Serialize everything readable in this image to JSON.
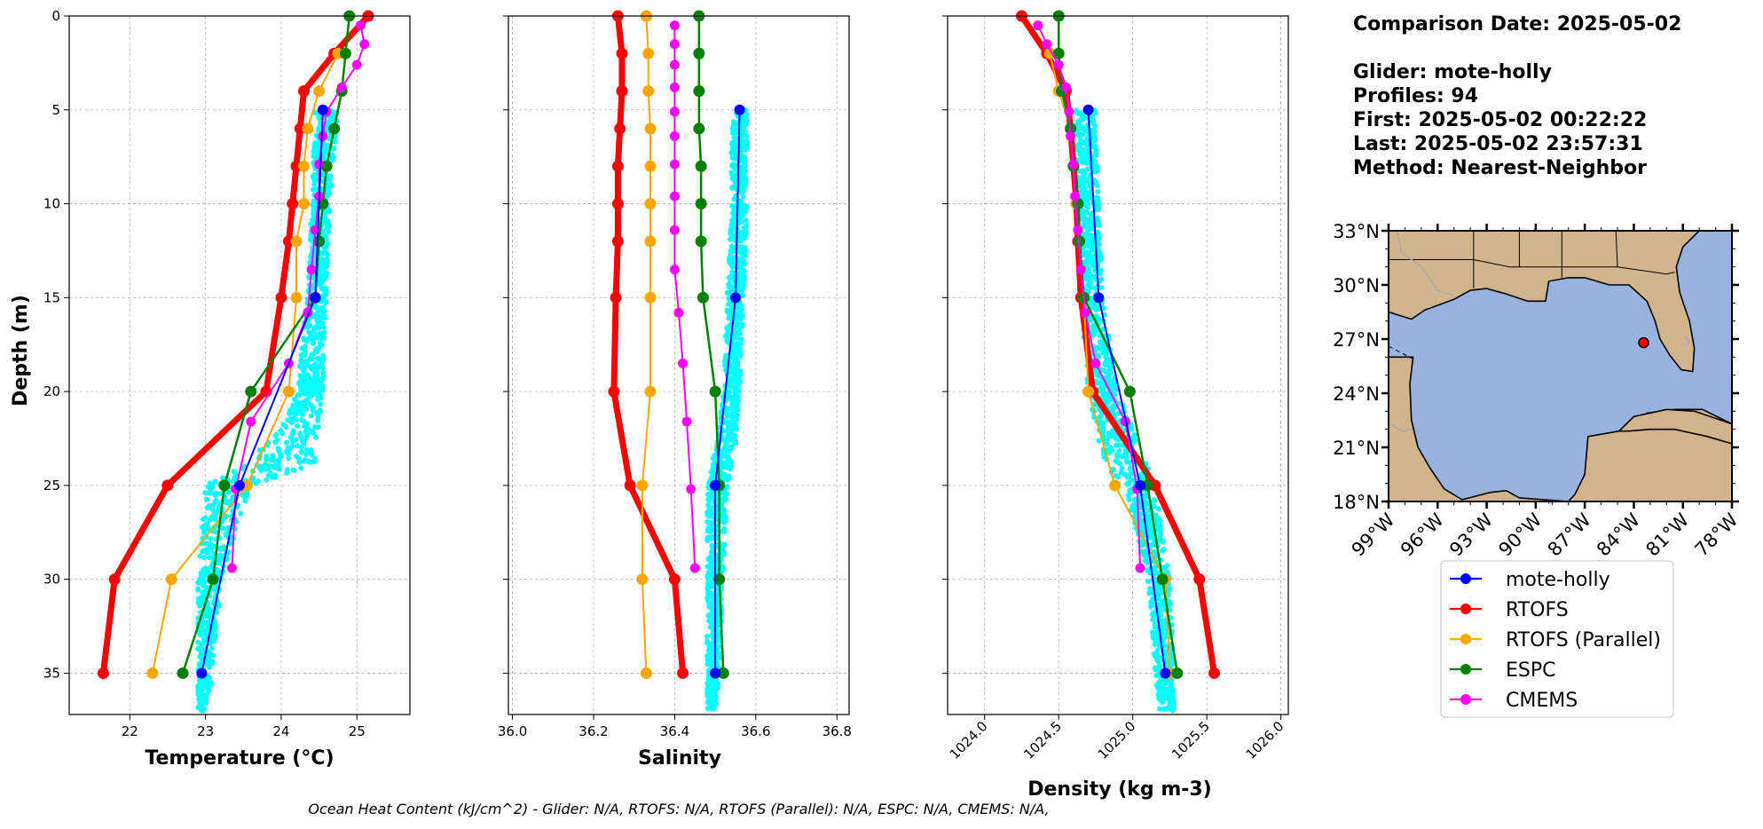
{
  "info": {
    "comparison": "Comparison Date: 2025-05-02",
    "glider": "Glider: mote-holly",
    "profiles": "Profiles: 94",
    "first": "First: 2025-05-02 00:22:22",
    "last": "Last: 2025-05-02 23:57:31",
    "method": "Method: Nearest-Neighbor"
  },
  "footer": "Ocean Heat Content (kJ/cm^2) - Glider: N/A,  RTOFS: N/A,  RTOFS (Parallel): N/A,  ESPC: N/A,  CMEMS: N/A,",
  "legend": [
    "mote-holly",
    "RTOFS",
    "RTOFS (Parallel)",
    "ESPC",
    "CMEMS"
  ],
  "colors": {
    "mote-holly": "#0000ff",
    "RTOFS": "#ff0000",
    "RTOFS (Parallel)": "#ffa500",
    "ESPC": "#008000",
    "CMEMS": "#ff00ff",
    "glider_scatter": "#00ffff",
    "land": "#d2b48c",
    "water": "#99b3e0"
  },
  "chart_data": [
    {
      "type": "line",
      "xlabel": "Temperature (°C)",
      "ylabel": "Depth (m)",
      "xlim": [
        21.2,
        25.7
      ],
      "ylim": [
        37.2,
        0
      ],
      "xticks": [
        22,
        23,
        24,
        25
      ],
      "yticks": [
        0,
        5,
        10,
        15,
        20,
        25,
        30,
        35
      ],
      "grid": true,
      "scatter": {
        "name": "mote-holly",
        "envelope": [
          [
            5,
            24.45,
            24.75
          ],
          [
            10,
            24.4,
            24.65
          ],
          [
            15,
            24.35,
            24.6
          ],
          [
            20,
            24.2,
            24.55
          ],
          [
            22,
            24.0,
            24.5
          ],
          [
            24,
            23.5,
            24.45
          ],
          [
            25,
            23.0,
            23.6
          ],
          [
            30,
            22.9,
            23.2
          ],
          [
            35,
            22.9,
            23.1
          ],
          [
            37,
            22.9,
            23.0
          ]
        ]
      },
      "series": [
        {
          "name": "mote-holly",
          "depth": [
            5,
            15,
            25,
            35
          ],
          "values": [
            24.55,
            24.45,
            23.45,
            22.95
          ]
        },
        {
          "name": "RTOFS",
          "depth": [
            0,
            2,
            4,
            6,
            8,
            10,
            12,
            15,
            20,
            25,
            30,
            35
          ],
          "values": [
            25.15,
            24.7,
            24.3,
            24.25,
            24.2,
            24.15,
            24.1,
            24.0,
            23.8,
            22.5,
            21.8,
            21.65
          ]
        },
        {
          "name": "RTOFS (Parallel)",
          "depth": [
            2,
            4,
            6,
            8,
            10,
            12,
            15,
            20,
            25,
            30,
            35
          ],
          "values": [
            24.75,
            24.5,
            24.35,
            24.3,
            24.3,
            24.2,
            24.2,
            24.1,
            23.55,
            22.55,
            22.3
          ]
        },
        {
          "name": "ESPC",
          "depth": [
            0,
            2,
            4,
            6,
            8,
            10,
            12,
            15,
            20,
            25,
            30,
            35
          ],
          "values": [
            24.9,
            24.85,
            24.8,
            24.7,
            24.6,
            24.55,
            24.5,
            24.45,
            23.6,
            23.25,
            23.1,
            22.7
          ]
        },
        {
          "name": "CMEMS",
          "depth": [
            0.5,
            1.5,
            2.6,
            3.8,
            5.1,
            6.4,
            7.9,
            9.6,
            11.4,
            13.5,
            15.8,
            18.5,
            21.6,
            25.2,
            29.4
          ],
          "values": [
            25.05,
            25.1,
            25.0,
            24.8,
            24.6,
            24.55,
            24.5,
            24.5,
            24.45,
            24.4,
            24.35,
            24.1,
            23.6,
            23.4,
            23.35
          ]
        }
      ]
    },
    {
      "type": "line",
      "xlabel": "Salinity",
      "xlim": [
        35.99,
        36.83
      ],
      "ylim": [
        37.2,
        0
      ],
      "xticks": [
        "36.0",
        "36.2",
        "36.4",
        "36.6",
        "36.8"
      ],
      "yticks": [
        0,
        5,
        10,
        15,
        20,
        25,
        30,
        35
      ],
      "grid": true,
      "scatter": {
        "name": "mote-holly",
        "envelope": [
          [
            5,
            36.54,
            36.58
          ],
          [
            10,
            36.54,
            36.58
          ],
          [
            15,
            36.53,
            36.57
          ],
          [
            20,
            36.52,
            36.56
          ],
          [
            23,
            36.5,
            36.55
          ],
          [
            25,
            36.48,
            36.53
          ],
          [
            30,
            36.48,
            36.52
          ],
          [
            35,
            36.48,
            36.51
          ],
          [
            37,
            36.48,
            36.5
          ]
        ]
      },
      "series": [
        {
          "name": "mote-holly",
          "depth": [
            5,
            15,
            25,
            35
          ],
          "values": [
            36.56,
            36.55,
            36.5,
            36.5
          ]
        },
        {
          "name": "RTOFS",
          "depth": [
            0,
            2,
            4,
            6,
            8,
            10,
            12,
            15,
            20,
            25,
            30,
            35
          ],
          "values": [
            36.26,
            36.27,
            36.27,
            36.265,
            36.26,
            36.26,
            36.26,
            36.255,
            36.25,
            36.29,
            36.4,
            36.42
          ]
        },
        {
          "name": "RTOFS (Parallel)",
          "depth": [
            0,
            2,
            4,
            6,
            8,
            10,
            12,
            15,
            20,
            25,
            30,
            35
          ],
          "values": [
            36.33,
            36.335,
            36.335,
            36.34,
            36.34,
            36.34,
            36.34,
            36.34,
            36.34,
            36.32,
            36.32,
            36.33
          ]
        },
        {
          "name": "ESPC",
          "depth": [
            0,
            2,
            4,
            6,
            8,
            10,
            12,
            15,
            20,
            25,
            30,
            35
          ],
          "values": [
            36.46,
            36.46,
            36.46,
            36.46,
            36.465,
            36.465,
            36.465,
            36.47,
            36.5,
            36.51,
            36.51,
            36.52
          ]
        },
        {
          "name": "CMEMS",
          "depth": [
            0.5,
            1.5,
            2.6,
            3.8,
            5.1,
            6.4,
            7.9,
            9.6,
            11.4,
            13.5,
            15.8,
            18.5,
            21.6,
            25.2,
            29.4
          ],
          "values": [
            36.4,
            36.4,
            36.4,
            36.4,
            36.4,
            36.4,
            36.4,
            36.4,
            36.4,
            36.4,
            36.41,
            36.42,
            36.43,
            36.44,
            36.45
          ]
        }
      ]
    },
    {
      "type": "line",
      "xlabel": "Density (kg m-3)",
      "xlim": [
        1023.75,
        1026.05
      ],
      "ylim": [
        37.2,
        0
      ],
      "xticks": [
        "1024.0",
        "1024.5",
        "1025.0",
        "1025.5",
        "1026.0"
      ],
      "yticks": [
        0,
        5,
        10,
        15,
        20,
        25,
        30,
        35
      ],
      "grid": true,
      "scatter": {
        "name": "mote-holly",
        "envelope": [
          [
            5,
            1024.6,
            1024.75
          ],
          [
            10,
            1024.62,
            1024.77
          ],
          [
            15,
            1024.65,
            1024.8
          ],
          [
            20,
            1024.7,
            1024.9
          ],
          [
            22,
            1024.75,
            1025.0
          ],
          [
            24,
            1024.8,
            1025.1
          ],
          [
            25,
            1024.95,
            1025.15
          ],
          [
            30,
            1025.1,
            1025.25
          ],
          [
            35,
            1025.15,
            1025.28
          ],
          [
            37,
            1025.18,
            1025.28
          ]
        ]
      },
      "series": [
        {
          "name": "mote-holly",
          "depth": [
            5,
            15,
            25,
            35
          ],
          "values": [
            1024.7,
            1024.77,
            1025.05,
            1025.22
          ]
        },
        {
          "name": "RTOFS",
          "depth": [
            0,
            2,
            4,
            6,
            8,
            10,
            12,
            15,
            20,
            25,
            30,
            35
          ],
          "values": [
            1024.25,
            1024.42,
            1024.55,
            1024.58,
            1024.6,
            1024.62,
            1024.63,
            1024.65,
            1024.73,
            1025.15,
            1025.45,
            1025.55
          ]
        },
        {
          "name": "RTOFS (Parallel)",
          "depth": [
            2,
            4,
            6,
            8,
            10,
            12,
            15,
            20,
            25,
            30,
            35
          ],
          "values": [
            1024.44,
            1024.5,
            1024.58,
            1024.6,
            1024.62,
            1024.64,
            1024.67,
            1024.7,
            1024.88,
            1025.22,
            1025.25
          ]
        },
        {
          "name": "ESPC",
          "depth": [
            0,
            2,
            4,
            6,
            8,
            10,
            12,
            15,
            20,
            25,
            30,
            35
          ],
          "values": [
            1024.5,
            1024.5,
            1024.52,
            1024.58,
            1024.6,
            1024.63,
            1024.64,
            1024.67,
            1024.98,
            1025.1,
            1025.2,
            1025.3
          ]
        },
        {
          "name": "CMEMS",
          "depth": [
            0.5,
            1.5,
            2.6,
            3.8,
            5.1,
            6.4,
            7.9,
            9.6,
            11.4,
            13.5,
            15.8,
            18.5,
            21.6,
            25.2,
            29.4
          ],
          "values": [
            1024.36,
            1024.42,
            1024.5,
            1024.55,
            1024.57,
            1024.58,
            1024.6,
            1024.61,
            1024.63,
            1024.65,
            1024.68,
            1024.75,
            1024.95,
            1025.03,
            1025.05
          ]
        }
      ]
    }
  ],
  "map": {
    "xticks": [
      "99°W",
      "96°W",
      "93°W",
      "90°W",
      "87°W",
      "84°W",
      "81°W",
      "78°W"
    ],
    "yticks": [
      "18°N",
      "21°N",
      "24°N",
      "27°N",
      "30°N",
      "33°N"
    ],
    "lon_range": [
      -99,
      -78
    ],
    "lat_range": [
      18,
      33
    ],
    "glider_position": [
      -83.4,
      26.8
    ]
  }
}
